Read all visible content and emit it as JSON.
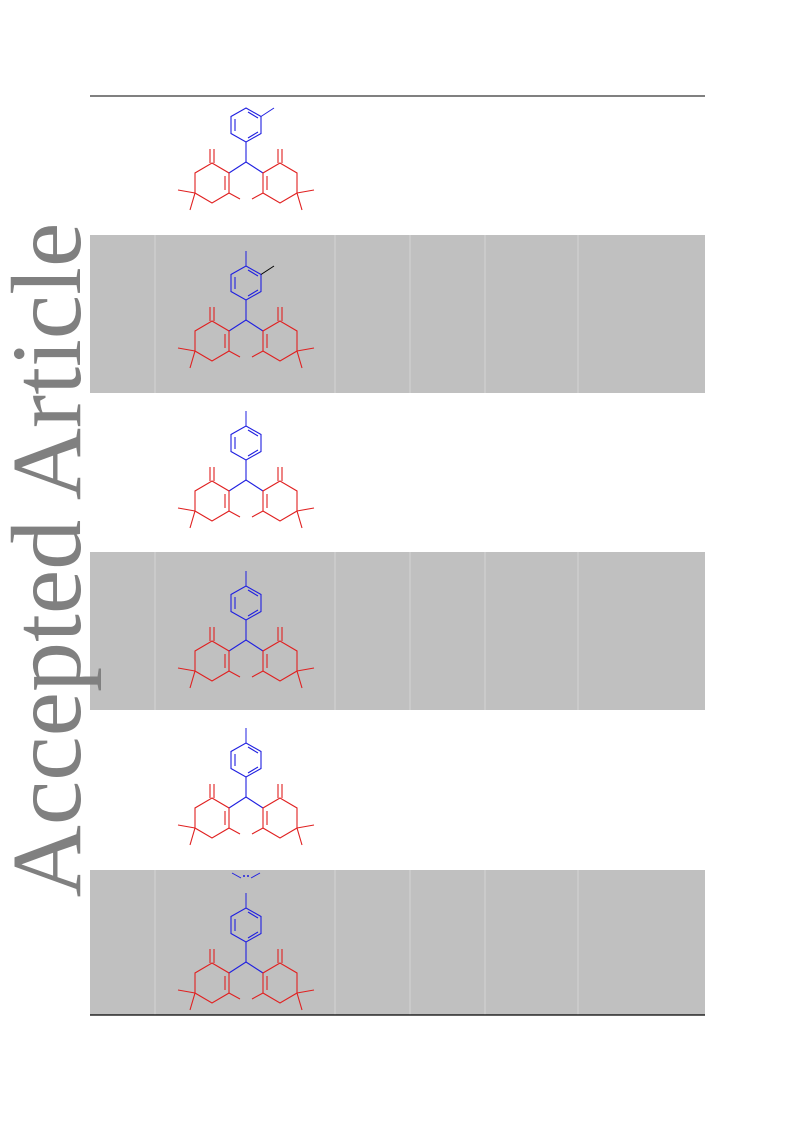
{
  "watermark": "Accepted Article"
}
